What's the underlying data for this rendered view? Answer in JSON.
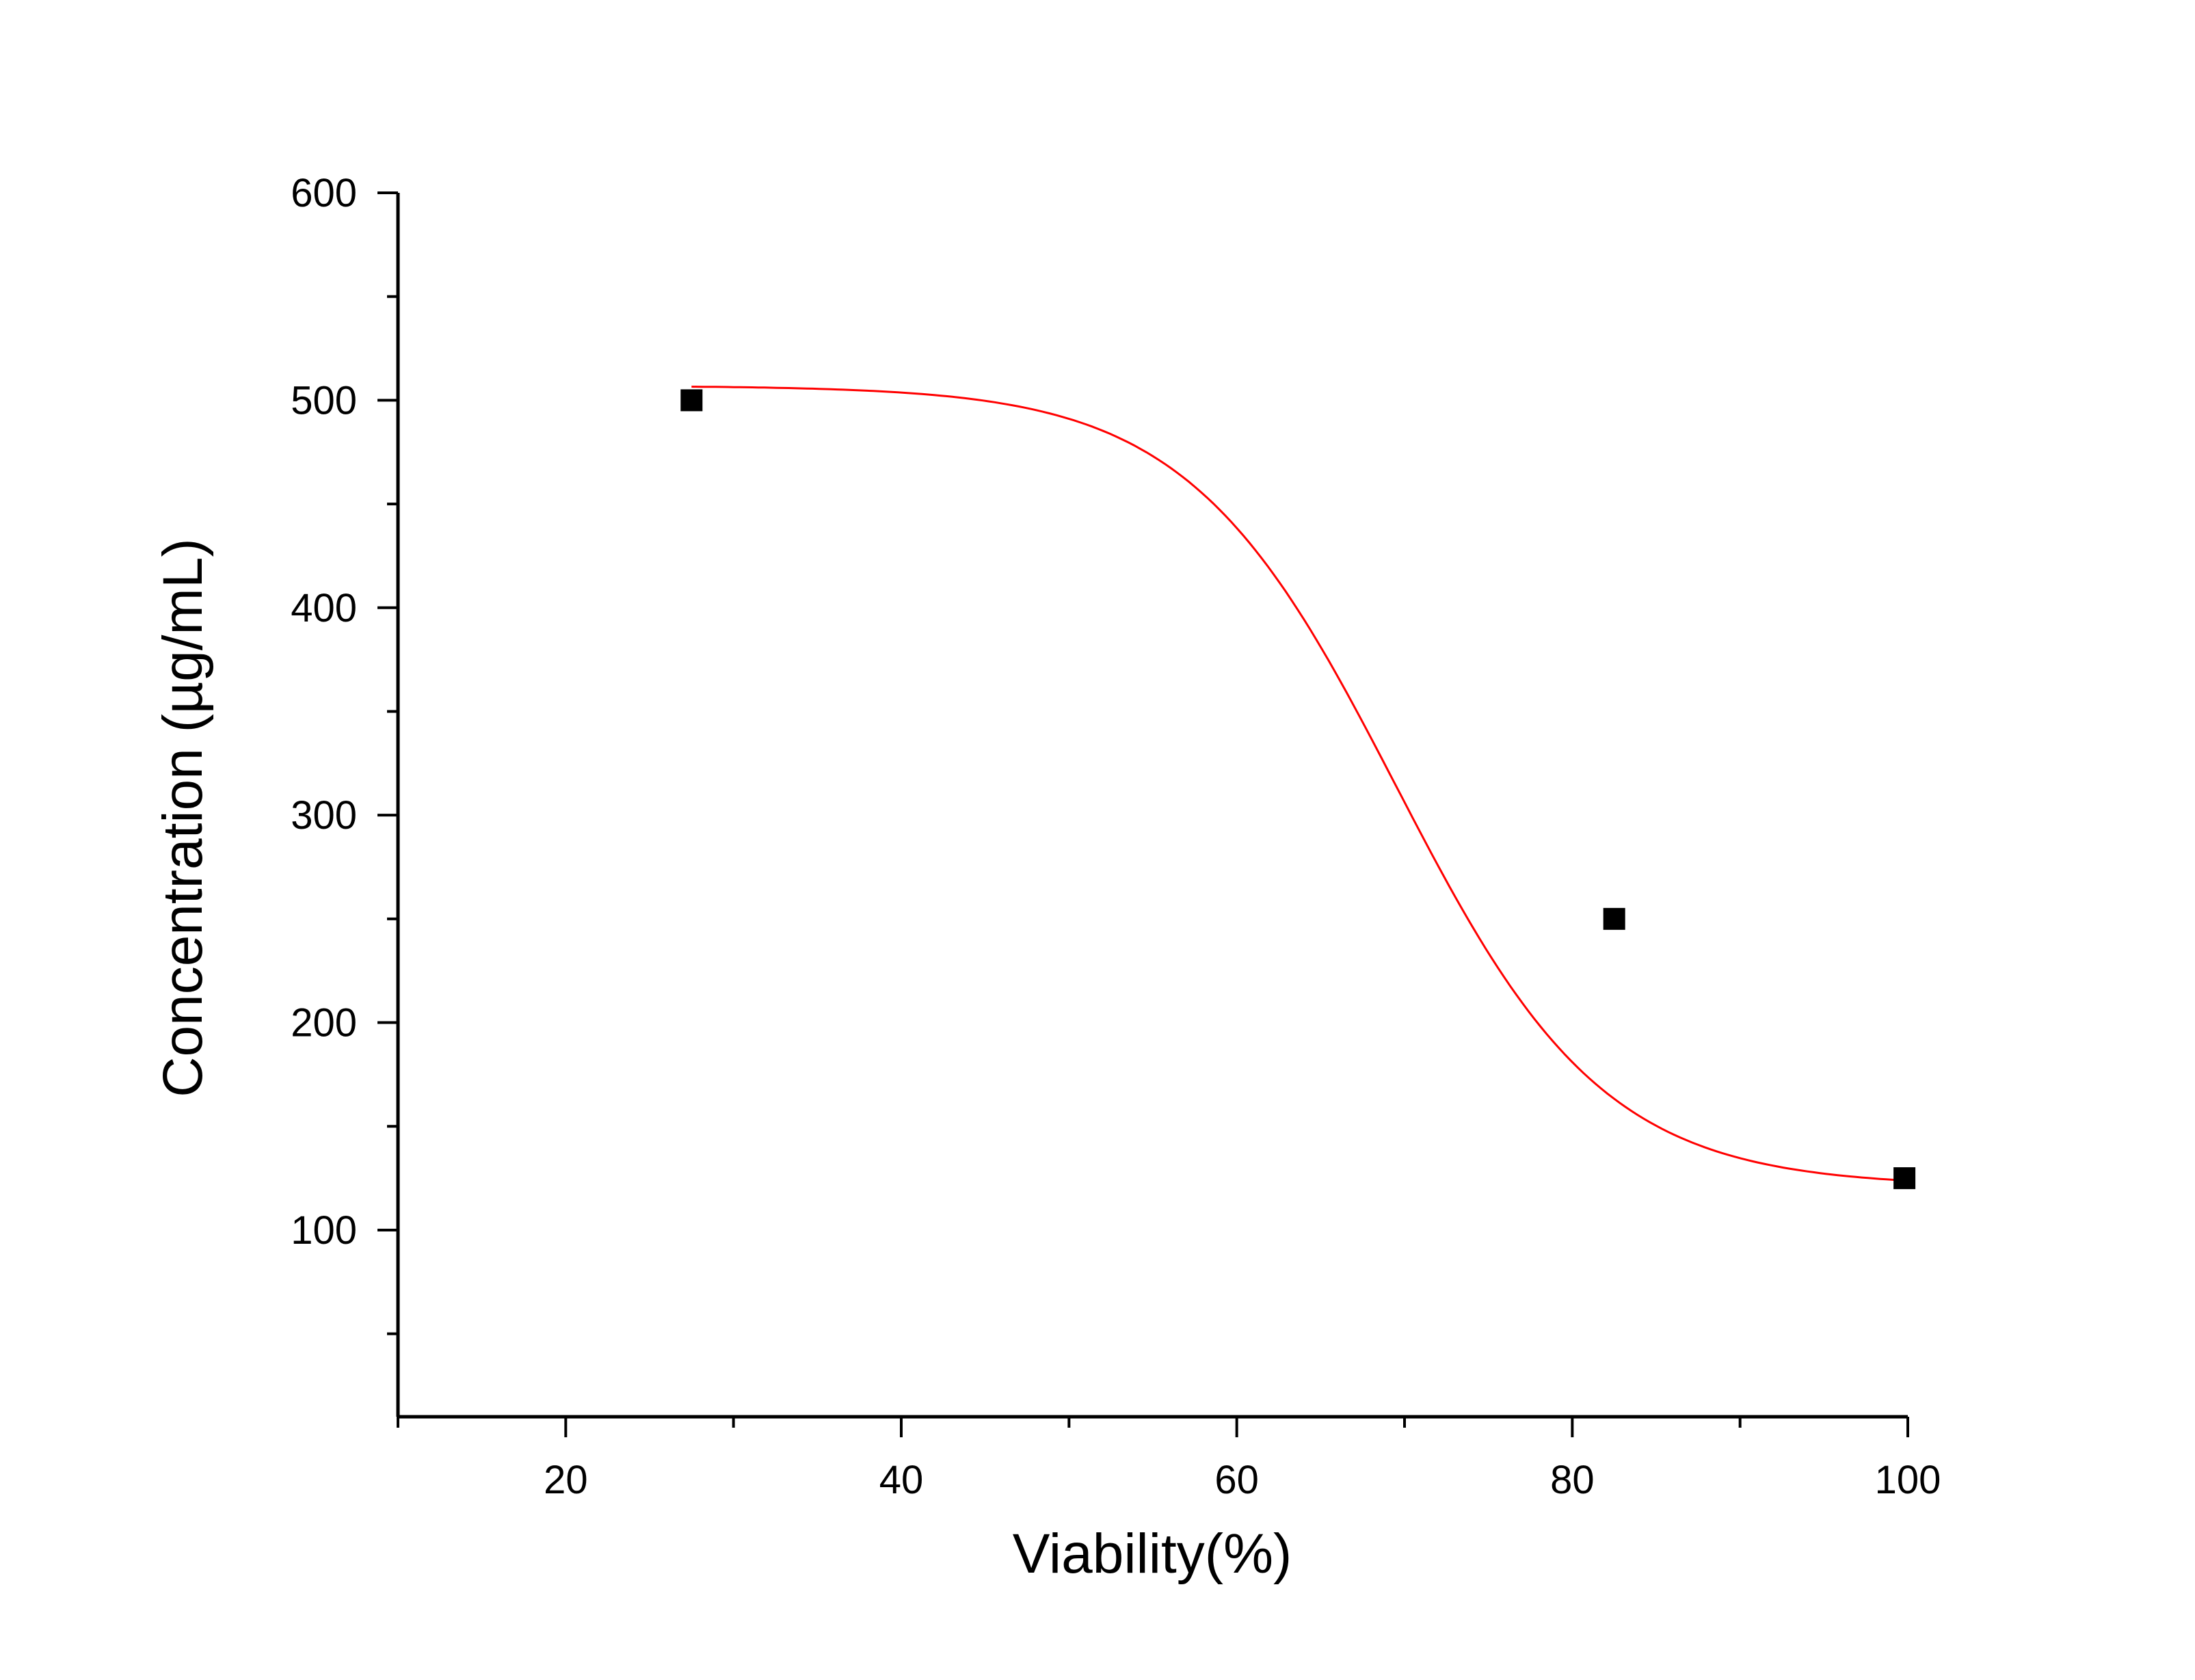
{
  "chart_data": {
    "type": "scatter",
    "title": "",
    "xlabel": "Viability(%)",
    "ylabel": "Concentration (µg/mL)",
    "xlim": [
      10,
      100
    ],
    "ylim": [
      10,
      600
    ],
    "x_ticks": [
      20,
      40,
      60,
      80,
      100
    ],
    "y_ticks": [
      100,
      200,
      300,
      400,
      500,
      600
    ],
    "x_minor_step": 10,
    "y_minor_step": 50,
    "grid": false,
    "legend": "none",
    "marker": "square",
    "marker_color": "#000000",
    "fit_color": "#ff0000",
    "points": [
      {
        "x": 27.5,
        "y": 500
      },
      {
        "x": 82.5,
        "y": 250
      },
      {
        "x": 99.8,
        "y": 125
      }
    ],
    "fit_curve": {
      "type": "sigmoid",
      "x_range": [
        27.5,
        99.8
      ],
      "A1": 507,
      "A2": 121,
      "x0": 69.5,
      "dx": 6.2
    }
  }
}
